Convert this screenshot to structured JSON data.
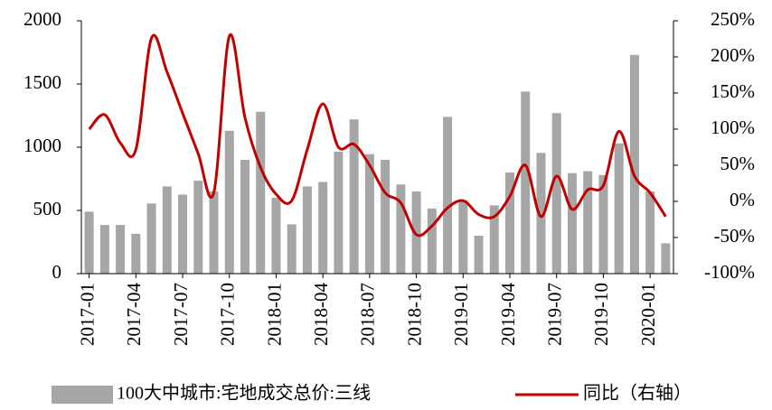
{
  "chart_data": {
    "type": "bar-line",
    "categories": [
      "2017-01",
      null,
      null,
      "2017-04",
      null,
      null,
      "2017-07",
      null,
      null,
      "2017-10",
      null,
      null,
      "2018-01",
      null,
      null,
      "2018-04",
      null,
      null,
      "2018-07",
      null,
      null,
      "2018-10",
      null,
      null,
      "2019-01",
      null,
      null,
      "2019-04",
      null,
      null,
      "2019-07",
      null,
      null,
      "2019-10",
      null,
      null,
      "2020-01",
      null
    ],
    "series": [
      {
        "name": "100大中城市:宅地成交总价:三线",
        "type": "bar",
        "color": "#a6a6a6",
        "values": [
          490,
          385,
          385,
          315,
          555,
          690,
          625,
          735,
          650,
          1130,
          900,
          1280,
          600,
          390,
          690,
          725,
          965,
          1220,
          945,
          900,
          705,
          650,
          515,
          1240,
          580,
          300,
          540,
          800,
          1440,
          955,
          1270,
          795,
          810,
          780,
          1030,
          1730,
          650,
          240
        ]
      },
      {
        "name": "同比（右轴）",
        "type": "line",
        "axis": "y2",
        "color": "#c00000",
        "values": [
          100,
          120,
          81,
          72,
          226,
          179,
          122,
          66,
          12,
          229,
          116,
          47,
          10,
          1,
          72,
          135,
          75,
          79,
          50,
          12,
          -2,
          -46,
          -34,
          -9,
          1,
          -18,
          -21,
          7,
          50,
          -21,
          35,
          -11,
          16,
          22,
          97,
          35,
          12,
          -21
        ]
      }
    ],
    "ylim": [
      0,
      2000
    ],
    "yticks": [
      0,
      500,
      1000,
      1500,
      2000
    ],
    "y2lim": [
      -100,
      250
    ],
    "y2ticks": [
      {
        "value": -100,
        "label": "-100%"
      },
      {
        "value": -50,
        "label": "-50%"
      },
      {
        "value": 0,
        "label": "0%"
      },
      {
        "value": 50,
        "label": "50%"
      },
      {
        "value": 100,
        "label": "100%"
      },
      {
        "value": 150,
        "label": "150%"
      },
      {
        "value": 200,
        "label": "200%"
      },
      {
        "value": 250,
        "label": "250%"
      }
    ],
    "legend": "bottom",
    "grid": false
  }
}
